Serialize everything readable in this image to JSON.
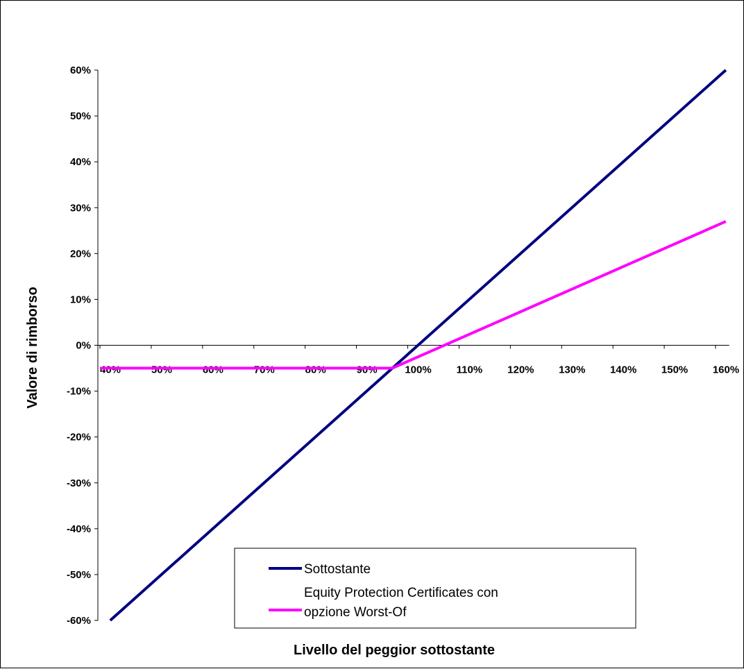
{
  "chart_data": {
    "type": "line",
    "title": "",
    "xlabel": "Livello del peggior sottostante",
    "ylabel": "Valore di rimborso",
    "x_tick_labels": [
      "40%",
      "50%",
      "60%",
      "70%",
      "80%",
      "90%",
      "100%",
      "110%",
      "120%",
      "130%",
      "140%",
      "150%",
      "160%"
    ],
    "y_tick_labels": [
      "60%",
      "50%",
      "40%",
      "30%",
      "20%",
      "10%",
      "0%",
      "-10%",
      "-20%",
      "-30%",
      "-40%",
      "-50%",
      "-60%"
    ],
    "xlim": [
      40,
      162
    ],
    "ylim": [
      -60,
      60
    ],
    "series": [
      {
        "name": "Sottostante",
        "color": "#000080",
        "x": [
          42,
          100,
          162
        ],
        "y": [
          -60,
          -2,
          60
        ]
      },
      {
        "name": "Equity Protection Certificates con opzione Worst-Of",
        "color": "#ff00ff",
        "x": [
          40,
          97,
          162
        ],
        "y": [
          -5,
          -5,
          27
        ]
      }
    ],
    "legend": {
      "placement": "bottom-center",
      "entries": [
        "Sottostante",
        "Equity Protection Certificates con",
        "opzione Worst-Of"
      ]
    },
    "grid": false
  }
}
